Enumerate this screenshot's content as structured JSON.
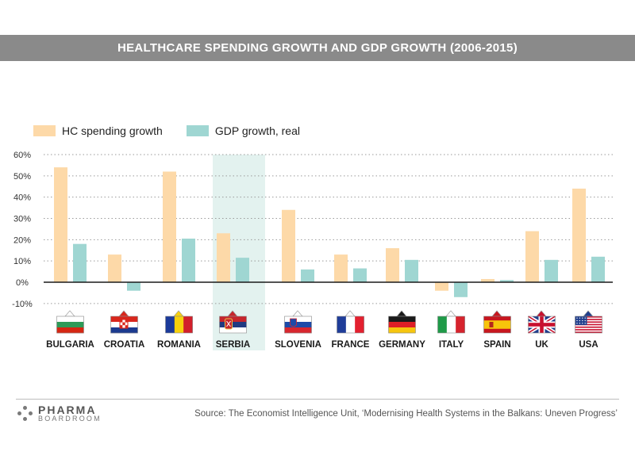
{
  "title": "HEALTHCARE SPENDING GROWTH AND GDP GROWTH (2006-2015)",
  "legend": {
    "hc": "HC spending growth",
    "gdp": "GDP growth, real"
  },
  "colors": {
    "hc": "#fdd9a8",
    "gdp": "#9fd6d2",
    "highlight": "#e3f2ef",
    "title_bg": "#8a8a8a"
  },
  "highlighted_country": "SERBIA",
  "chart_data": {
    "type": "bar",
    "categories": [
      "BULGARIA",
      "CROATIA",
      "ROMANIA",
      "SERBIA",
      "SLOVENIA",
      "FRANCE",
      "GERMANY",
      "ITALY",
      "SPAIN",
      "UK",
      "USA"
    ],
    "series": [
      {
        "name": "HC spending growth",
        "values": [
          54,
          13,
          52,
          23,
          34,
          13,
          16,
          -4,
          1.5,
          24,
          44
        ]
      },
      {
        "name": "GDP growth, real",
        "values": [
          18,
          -4,
          20.5,
          11.5,
          6,
          6.5,
          10.5,
          -7,
          1,
          10.5,
          12
        ]
      }
    ],
    "yticks": [
      "60%",
      "50%",
      "40%",
      "30%",
      "20%",
      "10%",
      "0%",
      "-10%"
    ],
    "ylim": [
      -10,
      60
    ],
    "grid": true
  },
  "flags": {
    "BULGARIA": [
      "#ffffff",
      "#2e9a57",
      "#d62612"
    ],
    "CROATIA": "croatia",
    "ROMANIA": "romania",
    "SERBIA": "serbia",
    "SLOVENIA": "slovenia",
    "FRANCE": "france",
    "GERMANY": "germany",
    "ITALY": "italy",
    "SPAIN": "spain",
    "UK": "uk",
    "USA": "usa"
  },
  "footer": {
    "logo_line1": "PHARMA",
    "logo_line2": "BOARDROOM",
    "source": "Source: The Economist Intelligence Unit, ‘Modernising Health Systems in the Balkans: Uneven Progress’"
  }
}
